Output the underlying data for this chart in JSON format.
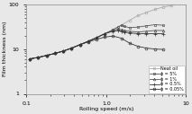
{
  "title": "",
  "xlabel": "Rolling speed (m/s)",
  "ylabel": "Film thickness (nm)",
  "xlim": [
    0.1,
    10
  ],
  "ylim": [
    1,
    100
  ],
  "series": {
    "neat_oil": {
      "label": "Neat oil",
      "marker": "o",
      "markersize": 2.0,
      "color": "#aaaaaa",
      "linewidth": 0.6,
      "fillstyle": "none",
      "x": [
        0.11,
        0.14,
        0.18,
        0.23,
        0.29,
        0.37,
        0.47,
        0.6,
        0.76,
        0.96,
        1.22,
        1.55,
        1.97,
        2.5,
        3.2,
        4.1,
        5.2,
        6.6
      ],
      "y": [
        6.0,
        6.5,
        7.2,
        8.0,
        9.0,
        10.5,
        12.5,
        15,
        18,
        22,
        27,
        34,
        44,
        56,
        66,
        77,
        87,
        93
      ]
    },
    "phi5": {
      "label": "ϕ = 5%",
      "marker": "s",
      "markersize": 2.0,
      "color": "#555555",
      "linewidth": 0.6,
      "fillstyle": "none",
      "x": [
        0.11,
        0.14,
        0.18,
        0.23,
        0.29,
        0.37,
        0.47,
        0.6,
        0.76,
        0.96,
        1.22,
        1.4,
        1.55,
        1.7,
        1.97,
        2.5,
        3.2,
        4.1,
        5.2
      ],
      "y": [
        6.0,
        6.5,
        7.2,
        8.0,
        9.0,
        10.5,
        12.5,
        15,
        18,
        22,
        27,
        31,
        34,
        32,
        30,
        31,
        33,
        35,
        34
      ]
    },
    "phi1": {
      "label": "ϕ = 1%",
      "marker": "^",
      "markersize": 2.0,
      "color": "#555555",
      "linewidth": 0.6,
      "fillstyle": "none",
      "x": [
        0.11,
        0.14,
        0.18,
        0.23,
        0.29,
        0.37,
        0.47,
        0.6,
        0.76,
        0.96,
        1.22,
        1.4,
        1.55,
        1.7,
        1.97,
        2.5,
        3.2,
        4.1,
        5.2
      ],
      "y": [
        6.0,
        6.5,
        7.2,
        8.0,
        9.0,
        10.5,
        12.5,
        15,
        18,
        22,
        26,
        28,
        27,
        26,
        25,
        24,
        25,
        26,
        26
      ]
    },
    "phi05": {
      "label": "ϕ = 0.5%",
      "marker": "+",
      "markersize": 3.0,
      "color": "#333333",
      "linewidth": 0.6,
      "fillstyle": "full",
      "x": [
        0.11,
        0.14,
        0.18,
        0.23,
        0.29,
        0.37,
        0.47,
        0.6,
        0.76,
        0.96,
        1.22,
        1.4,
        1.55,
        1.7,
        1.97,
        2.5,
        3.2,
        4.1,
        5.2
      ],
      "y": [
        6.0,
        6.5,
        7.2,
        8.0,
        9.0,
        10.5,
        12.5,
        15,
        18,
        22,
        25,
        26,
        25,
        24,
        23,
        22,
        22,
        22,
        22
      ]
    },
    "phi005": {
      "label": "ϕ = 0.05%",
      "marker": "o",
      "markersize": 2.0,
      "color": "#333333",
      "linewidth": 0.6,
      "fillstyle": "none",
      "x": [
        0.11,
        0.14,
        0.18,
        0.23,
        0.29,
        0.37,
        0.47,
        0.6,
        0.76,
        0.96,
        1.22,
        1.55,
        1.97,
        2.5,
        3.2,
        4.1,
        5.2
      ],
      "y": [
        6.0,
        6.5,
        7.2,
        8.0,
        9.0,
        10.5,
        12.5,
        14.5,
        16.5,
        18.5,
        19.5,
        17.5,
        13.5,
        11.5,
        10.5,
        10.0,
        9.8
      ]
    }
  },
  "xticks": [
    0.1,
    1.0,
    10
  ],
  "xticklabels": [
    "0.1",
    "1.0",
    "10"
  ],
  "yticks": [
    1,
    10,
    100
  ],
  "yticklabels": [
    "1",
    "10",
    "100"
  ]
}
